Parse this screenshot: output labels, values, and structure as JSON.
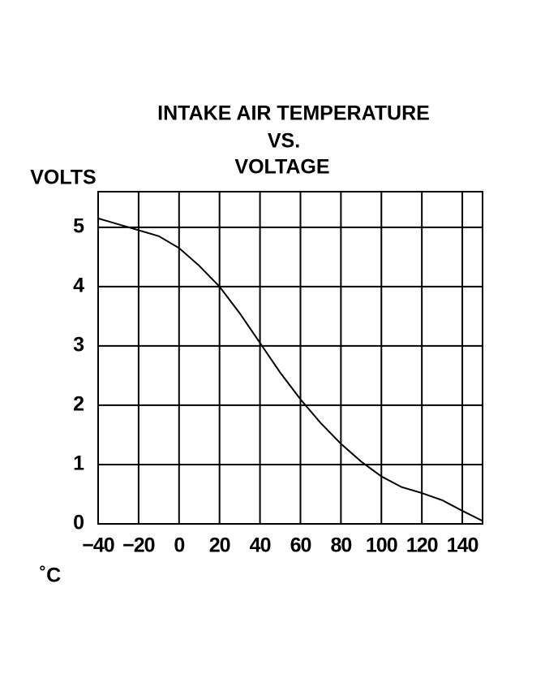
{
  "chart_data": {
    "type": "line",
    "title": [
      "INTAKE AIR TEMPERATURE",
      "VS.",
      "VOLTAGE"
    ],
    "y_label": "VOLTS",
    "x_label": "˚C",
    "x": [
      -40,
      -20,
      -10,
      0,
      10,
      20,
      30,
      40,
      50,
      60,
      70,
      80,
      90,
      100,
      110,
      120,
      130,
      140,
      150
    ],
    "series": [
      {
        "color": "#000000",
        "values": [
          5.15,
          4.95,
          4.85,
          4.65,
          4.35,
          4.0,
          3.55,
          3.05,
          2.55,
          2.1,
          1.7,
          1.35,
          1.05,
          0.8,
          0.62,
          0.52,
          0.4,
          0.22,
          0.05
        ]
      }
    ],
    "xlim": [
      -40,
      150
    ],
    "ylim": [
      0,
      5.6
    ],
    "xticks": [
      {
        "value": -40,
        "label": "−40"
      },
      {
        "value": -20,
        "label": "−20"
      },
      0,
      20,
      40,
      60,
      80,
      100,
      120,
      140
    ],
    "yticks": [
      0,
      1,
      2,
      3,
      4,
      5
    ],
    "grid": true
  }
}
